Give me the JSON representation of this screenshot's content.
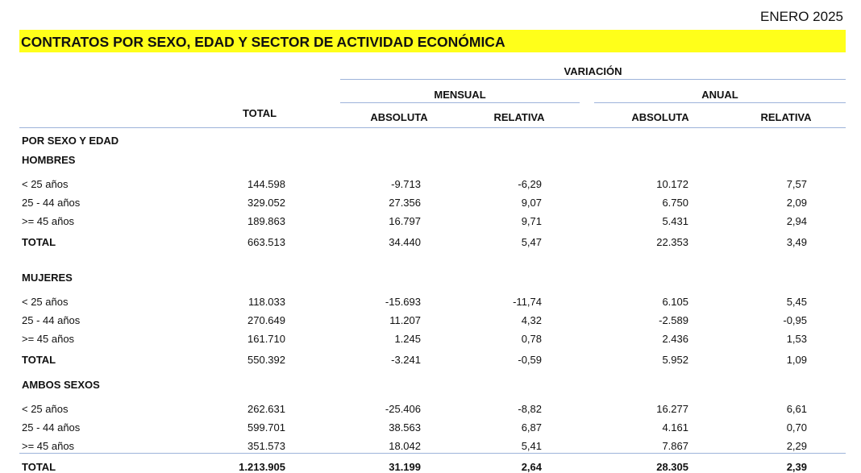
{
  "date_label": "ENERO 2025",
  "title": "CONTRATOS POR SEXO, EDAD Y SECTOR DE ACTIVIDAD ECONÓMICA",
  "headers": {
    "variacion": "VARIACIÓN",
    "mensual": "MENSUAL",
    "anual": "ANUAL",
    "total": "TOTAL",
    "absoluta": "ABSOLUTA",
    "relativa": "RELATIVA"
  },
  "section_title": "POR SEXO Y EDAD",
  "groups": [
    {
      "name": "HOMBRES",
      "rows": [
        {
          "label": "< 25 años",
          "values": [
            "144.598",
            "-9.713",
            "-6,29",
            "10.172",
            "7,57"
          ]
        },
        {
          "label": "25 - 44 años",
          "values": [
            "329.052",
            "27.356",
            "9,07",
            "6.750",
            "2,09"
          ]
        },
        {
          "label": ">= 45 años",
          "values": [
            "189.863",
            "16.797",
            "9,71",
            "5.431",
            "2,94"
          ]
        },
        {
          "label": "TOTAL",
          "values": [
            "663.513",
            "34.440",
            "5,47",
            "22.353",
            "3,49"
          ]
        }
      ]
    },
    {
      "name": "MUJERES",
      "rows": [
        {
          "label": "< 25 años",
          "values": [
            "118.033",
            "-15.693",
            "-11,74",
            "6.105",
            "5,45"
          ]
        },
        {
          "label": "25 - 44 años",
          "values": [
            "270.649",
            "11.207",
            "4,32",
            "-2.589",
            "-0,95"
          ]
        },
        {
          "label": ">= 45 años",
          "values": [
            "161.710",
            "1.245",
            "0,78",
            "2.436",
            "1,53"
          ]
        },
        {
          "label": "TOTAL",
          "values": [
            "550.392",
            "-3.241",
            "-0,59",
            "5.952",
            "1,09"
          ]
        }
      ]
    },
    {
      "name": "AMBOS SEXOS",
      "rows": [
        {
          "label": "< 25 años",
          "values": [
            "262.631",
            "-25.406",
            "-8,82",
            "16.277",
            "6,61"
          ]
        },
        {
          "label": "25 - 44 años",
          "values": [
            "599.701",
            "38.563",
            "6,87",
            "4.161",
            "0,70"
          ]
        },
        {
          "label": ">= 45 años",
          "values": [
            "351.573",
            "18.042",
            "5,41",
            "7.867",
            "2,29"
          ]
        },
        {
          "label": "TOTAL",
          "values": [
            "1.213.905",
            "31.199",
            "2,64",
            "28.305",
            "2,39"
          ]
        }
      ]
    }
  ],
  "colors": {
    "banner": "#ffff1a",
    "rule": "#9db3da"
  }
}
